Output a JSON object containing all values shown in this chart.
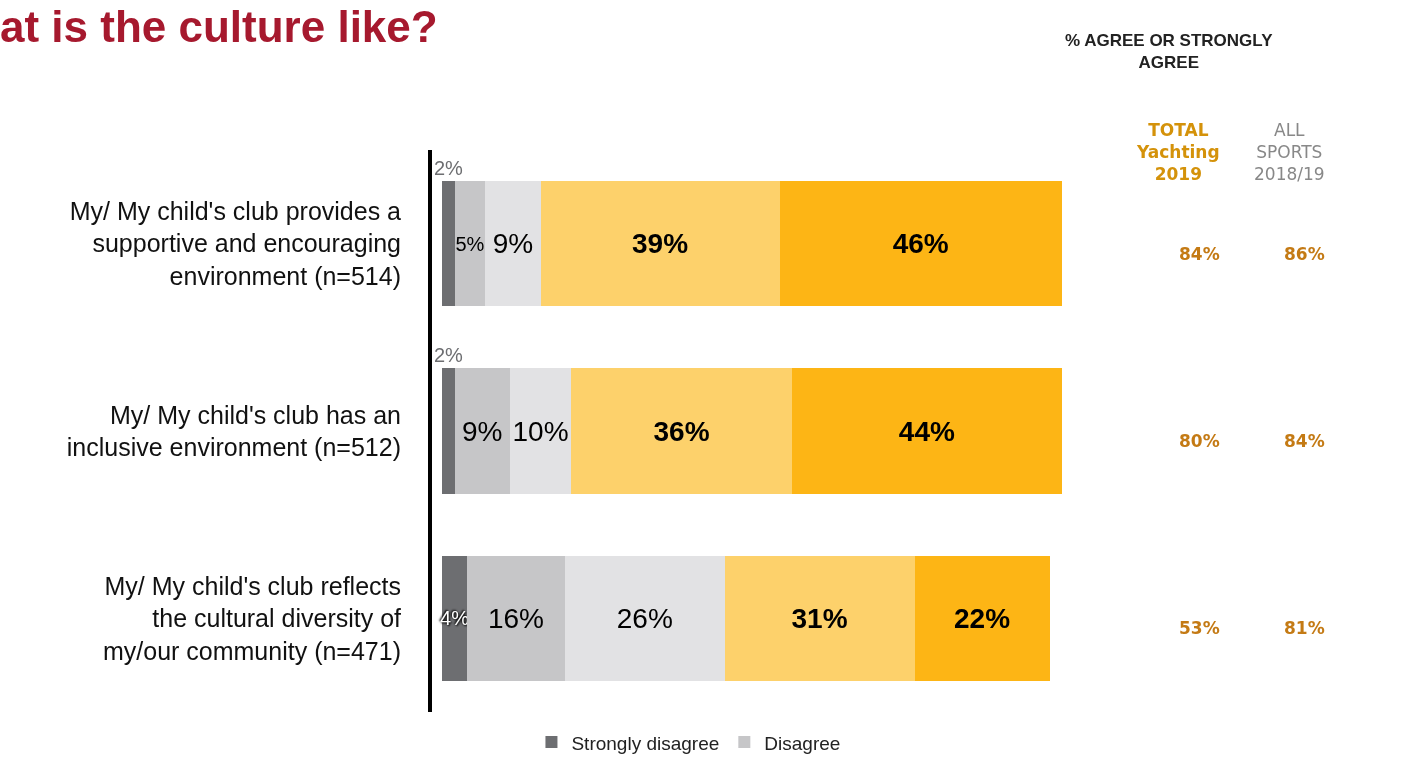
{
  "chart_data": {
    "type": "bar",
    "orientation": "horizontal",
    "stacked": true,
    "title": "at is the culture like?",
    "categories": [
      "My/ My child's club provides a supportive and encouraging environment (n=514)",
      "My/ My child's club has an inclusive environment (n=512)",
      "My/ My child's club reflects the cultural diversity of my/our community (n=471)"
    ],
    "series": [
      {
        "name": "Strongly disagree",
        "color": "#6d6e71",
        "values": [
          2,
          2,
          4
        ],
        "value_labels": [
          "2%",
          "2%",
          "4%"
        ]
      },
      {
        "name": "Disagree",
        "color": "#c6c6c8",
        "values": [
          5,
          9,
          16
        ],
        "value_labels": [
          "5%",
          "9%",
          "16%"
        ]
      },
      {
        "color": "#e2e2e4",
        "values": [
          9,
          10,
          26
        ],
        "value_labels": [
          "9%",
          "10%",
          "26%"
        ]
      },
      {
        "color": "#fdd16b",
        "values": [
          39,
          36,
          31
        ],
        "value_labels": [
          "39%",
          "36%",
          "31%"
        ]
      },
      {
        "color": "#fdb515",
        "values": [
          46,
          44,
          22
        ],
        "value_labels": [
          "46%",
          "44%",
          "22%"
        ]
      }
    ],
    "legend": "bottom",
    "annotations": [
      "% AGREE OR STRONGLY AGREE",
      "TOTAL Yachting 2019",
      "ALL SPORTS 2018/19",
      "84%",
      "80%",
      "53%",
      "86%",
      "84%",
      "81%"
    ]
  }
}
